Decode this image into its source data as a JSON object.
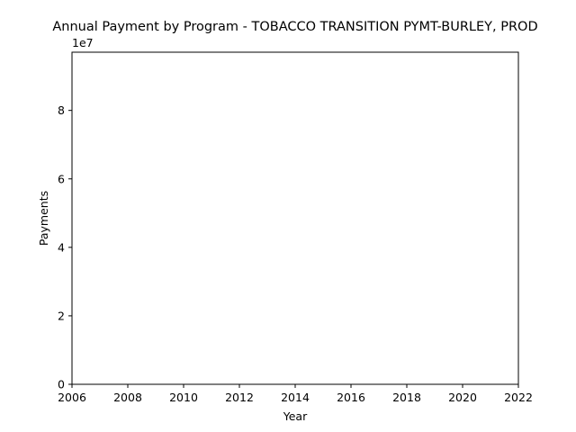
{
  "chart_data": {
    "type": "line",
    "title": "Annual Payment by Program - TOBACCO TRANSITION PYMT-BURLEY, PROD",
    "xlabel": "Year",
    "ylabel": "Payments",
    "xlim": [
      2006,
      2022
    ],
    "ylim": [
      0,
      97000000
    ],
    "x_ticks": [
      2006,
      2008,
      2010,
      2012,
      2014,
      2016,
      2018,
      2020,
      2022
    ],
    "x_tick_labels": [
      "2006",
      "2008",
      "2010",
      "2012",
      "2014",
      "2016",
      "2018",
      "2020",
      "2022"
    ],
    "y_ticks": [
      0,
      20000000,
      40000000,
      60000000,
      80000000
    ],
    "y_tick_labels": [
      "0",
      "2",
      "4",
      "6",
      "8"
    ],
    "y_offset_label": "1e7",
    "grid": false,
    "series": [
      {
        "values": []
      }
    ]
  }
}
